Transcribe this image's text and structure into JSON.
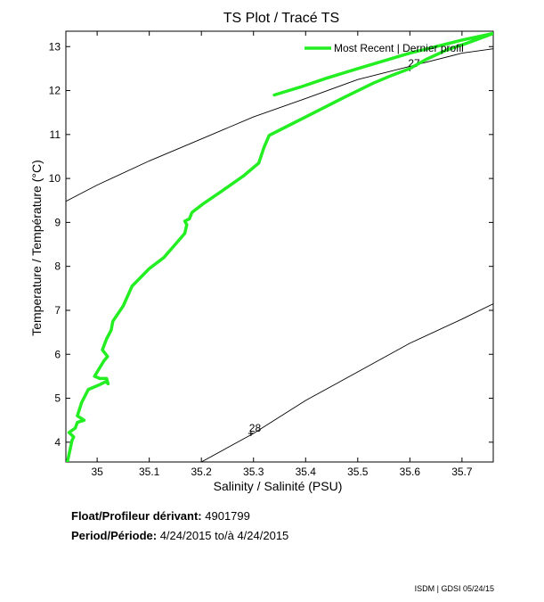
{
  "chart_data": {
    "type": "line",
    "title": "TS Plot / Tracé TS",
    "xlabel": "Salinity / Salinité (PSU)",
    "ylabel": "Temperature / Température (°C)",
    "xlim": [
      34.94,
      35.76
    ],
    "ylim": [
      3.55,
      13.35
    ],
    "x_ticks": [
      35,
      35.1,
      35.2,
      35.3,
      35.4,
      35.5,
      35.6,
      35.7
    ],
    "x_tick_labels": [
      "35",
      "35.1",
      "35.2",
      "35.3",
      "35.4",
      "35.5",
      "35.6",
      "35.7"
    ],
    "y_ticks": [
      4,
      5,
      6,
      7,
      8,
      9,
      10,
      11,
      12,
      13
    ],
    "y_tick_labels": [
      "4",
      "5",
      "6",
      "7",
      "8",
      "9",
      "10",
      "11",
      "12",
      "13"
    ],
    "grid": false,
    "legend_position": "top-right",
    "series": [
      {
        "name": "Most Recent | Dernier profil",
        "color": "#22ee22",
        "x": [
          34.943,
          34.952,
          34.955,
          34.946,
          34.958,
          34.962,
          34.975,
          34.962,
          34.97,
          34.983,
          35.003,
          35.017,
          35.021,
          35.018,
          35.005,
          34.995,
          35.013,
          35.02,
          35.01,
          35.018,
          35.027,
          35.03,
          35.05,
          35.067,
          35.1,
          35.128,
          35.15,
          35.168,
          35.172,
          35.168,
          35.177,
          35.182,
          35.203,
          35.24,
          35.28,
          35.31,
          35.32,
          35.33,
          35.37,
          35.42,
          35.48,
          35.53,
          35.56,
          35.6,
          35.63,
          35.67,
          35.71,
          35.76,
          35.7,
          35.6,
          35.5,
          35.44,
          35.39,
          35.34
        ],
        "y": [
          3.56,
          4.05,
          4.12,
          4.22,
          4.32,
          4.45,
          4.5,
          4.6,
          4.9,
          5.2,
          5.3,
          5.38,
          5.33,
          5.45,
          5.45,
          5.5,
          5.85,
          5.95,
          6.1,
          6.35,
          6.55,
          6.75,
          7.1,
          7.55,
          7.95,
          8.2,
          8.5,
          8.75,
          8.95,
          9.03,
          9.08,
          9.23,
          9.42,
          9.72,
          10.05,
          10.35,
          10.7,
          10.98,
          11.22,
          11.52,
          11.88,
          12.17,
          12.32,
          12.5,
          12.7,
          12.92,
          13.08,
          13.3,
          13.15,
          12.85,
          12.5,
          12.28,
          12.08,
          11.9
        ]
      }
    ],
    "isopycnals": [
      {
        "label": "27",
        "x": [
          34.94,
          35.0,
          35.1,
          35.2,
          35.3,
          35.4,
          35.5,
          35.6,
          35.7,
          35.76
        ],
        "y": [
          9.48,
          9.85,
          10.4,
          10.9,
          11.4,
          11.82,
          12.25,
          12.55,
          12.85,
          12.95
        ],
        "label_at": [
          35.6,
          12.5
        ]
      },
      {
        "label": "28",
        "x": [
          35.2,
          35.3,
          35.4,
          35.5,
          35.6,
          35.7,
          35.76
        ],
        "y": [
          3.55,
          4.2,
          4.95,
          5.6,
          6.25,
          6.8,
          7.15
        ],
        "label_at": [
          35.295,
          4.2
        ]
      }
    ]
  },
  "info": {
    "float_label": "Float/Profileur dérivant:",
    "float_value": "4901799",
    "period_label": "Period/Période:",
    "period_value": "4/24/2015  to/à  4/24/2015"
  },
  "footer": "ISDM | GDSI  05/24/15"
}
